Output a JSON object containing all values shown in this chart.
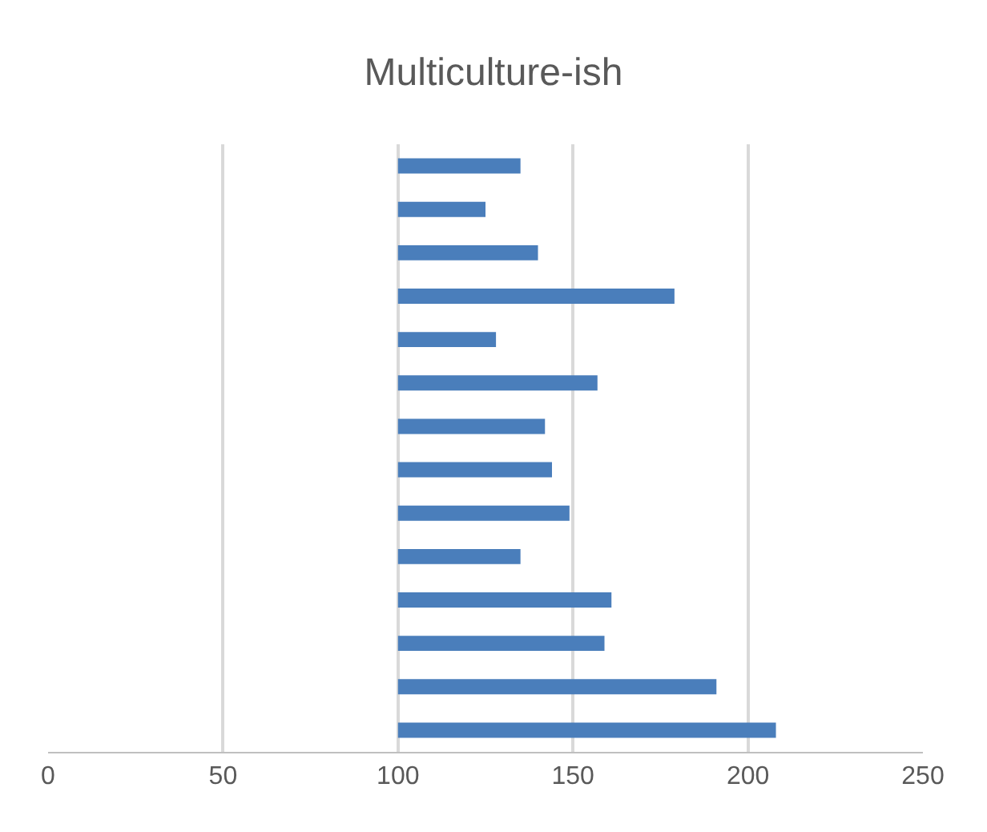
{
  "chart_data": {
    "type": "bar",
    "orientation": "horizontal",
    "title": "Multiculture-ish",
    "categories": [
      null,
      null,
      null,
      null,
      null,
      null,
      null,
      null,
      null,
      null,
      null,
      null,
      null,
      null
    ],
    "base": [
      100,
      100,
      100,
      100,
      100,
      100,
      100,
      100,
      100,
      100,
      100,
      100,
      100,
      100
    ],
    "values": [
      35,
      25,
      40,
      79,
      28,
      57,
      42,
      44,
      49,
      35,
      61,
      59,
      91,
      108
    ],
    "color": "#4a7ebb",
    "xlim": [
      0,
      250
    ],
    "xticks": [
      0,
      50,
      100,
      150,
      200,
      250
    ],
    "grid": "x",
    "tick_labels": "x"
  }
}
